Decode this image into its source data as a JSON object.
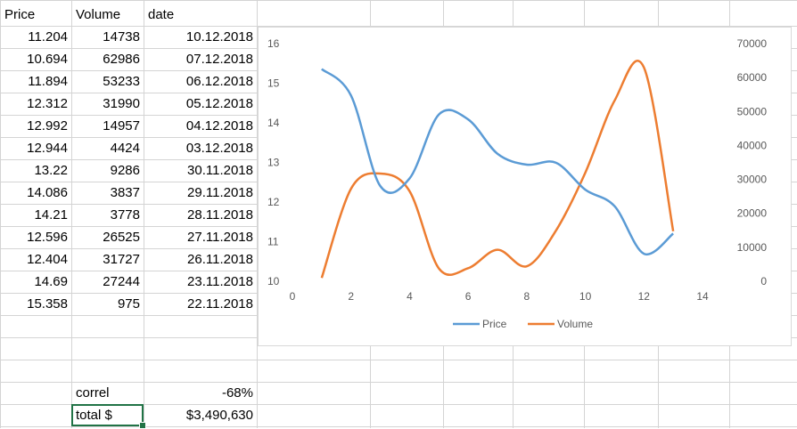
{
  "sheet": {
    "headers": {
      "price": "Price",
      "volume": "Volume",
      "date": "date"
    },
    "rows": [
      {
        "price": "11.204",
        "volume": "14738",
        "date": "10.12.2018"
      },
      {
        "price": "10.694",
        "volume": "62986",
        "date": "07.12.2018"
      },
      {
        "price": "11.894",
        "volume": "53233",
        "date": "06.12.2018"
      },
      {
        "price": "12.312",
        "volume": "31990",
        "date": "05.12.2018"
      },
      {
        "price": "12.992",
        "volume": "14957",
        "date": "04.12.2018"
      },
      {
        "price": "12.944",
        "volume": "4424",
        "date": "03.12.2018"
      },
      {
        "price": "13.22",
        "volume": "9286",
        "date": "30.11.2018"
      },
      {
        "price": "14.086",
        "volume": "3837",
        "date": "29.11.2018"
      },
      {
        "price": "14.21",
        "volume": "3778",
        "date": "28.11.2018"
      },
      {
        "price": "12.596",
        "volume": "26525",
        "date": "27.11.2018"
      },
      {
        "price": "12.404",
        "volume": "31727",
        "date": "26.11.2018"
      },
      {
        "price": "14.69",
        "volume": "27244",
        "date": "23.11.2018"
      },
      {
        "price": "15.358",
        "volume": "975",
        "date": "22.11.2018"
      }
    ],
    "correl": {
      "label": "correl",
      "value": "-68%"
    },
    "total": {
      "label": "total $",
      "value": "$3,490,630"
    }
  },
  "colors": {
    "price": "#5b9bd5",
    "volume": "#ed7d31",
    "selection": "#217346"
  },
  "chart_data": {
    "type": "scatter",
    "smooth": true,
    "x": [
      1,
      2,
      3,
      4,
      5,
      6,
      7,
      8,
      9,
      10,
      11,
      12,
      13
    ],
    "series": [
      {
        "name": "Price",
        "axis": "left",
        "values": [
          15.358,
          14.69,
          12.404,
          12.596,
          14.21,
          14.086,
          13.22,
          12.944,
          12.992,
          12.312,
          11.894,
          10.694,
          11.204
        ]
      },
      {
        "name": "Volume",
        "axis": "right",
        "values": [
          975,
          27244,
          31727,
          26525,
          3778,
          3837,
          9286,
          4424,
          14957,
          31990,
          53233,
          62986,
          14738
        ]
      }
    ],
    "xlim": [
      0,
      14
    ],
    "xticks": [
      "0",
      "2",
      "4",
      "6",
      "8",
      "10",
      "12",
      "14"
    ],
    "ylim_left": [
      10,
      16
    ],
    "yticks_left": [
      "10",
      "11",
      "12",
      "13",
      "14",
      "15",
      "16"
    ],
    "ylim_right": [
      0,
      70000
    ],
    "yticks_right": [
      "0",
      "10000",
      "20000",
      "30000",
      "40000",
      "50000",
      "60000",
      "70000"
    ],
    "legend": "bottom",
    "grid": false
  }
}
